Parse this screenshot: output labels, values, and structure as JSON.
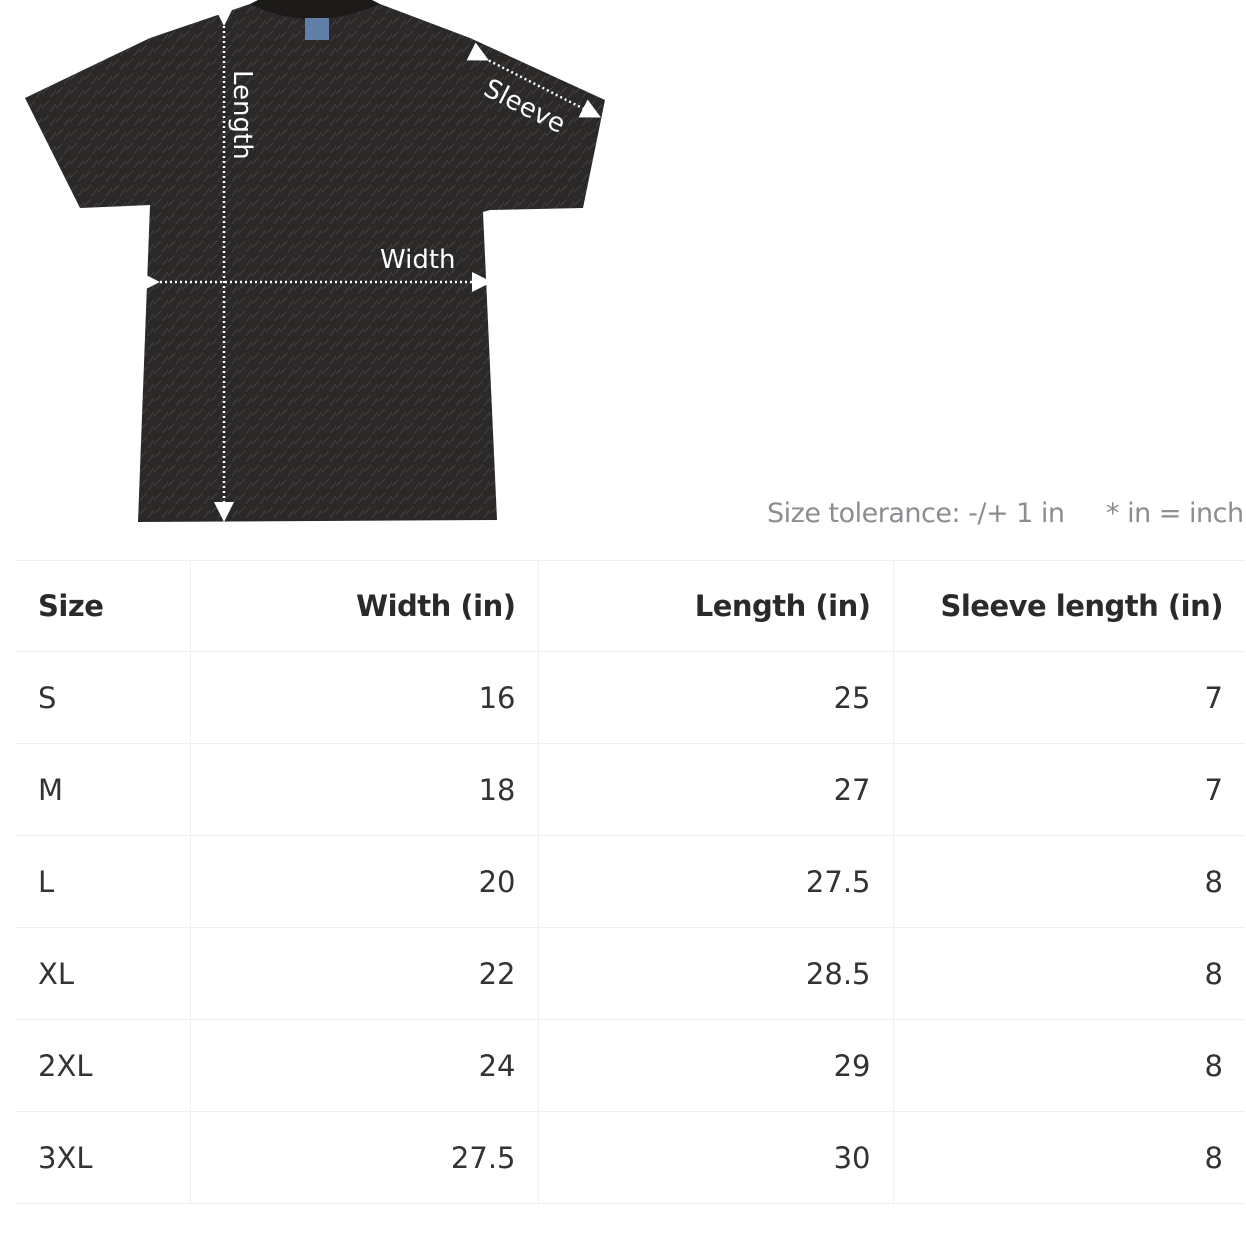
{
  "diagram": {
    "labels": {
      "length": "Length",
      "sleeve": "Sleeve",
      "width": "Width"
    },
    "shirt_color": "#2b2928"
  },
  "notes": {
    "tolerance": "Size tolerance: -/+ 1 in",
    "unit": "* in = inch"
  },
  "table": {
    "headers": [
      "Size",
      "Width (in)",
      "Length (in)",
      "Sleeve length (in)"
    ],
    "rows": [
      [
        "S",
        "16",
        "25",
        "7"
      ],
      [
        "M",
        "18",
        "27",
        "7"
      ],
      [
        "L",
        "20",
        "27.5",
        "8"
      ],
      [
        "XL",
        "22",
        "28.5",
        "8"
      ],
      [
        "2XL",
        "24",
        "29",
        "8"
      ],
      [
        "3XL",
        "27.5",
        "30",
        "8"
      ]
    ]
  }
}
